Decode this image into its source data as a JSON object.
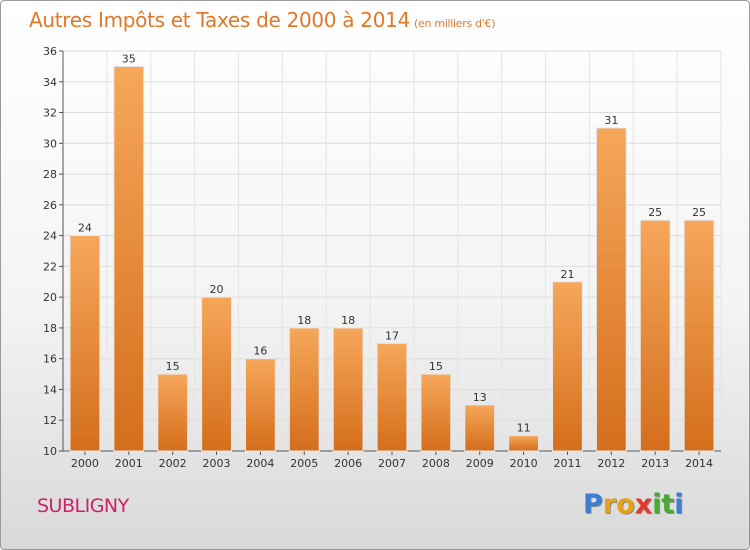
{
  "header": {
    "title": "Autres Impôts et Taxes de 2000 à 2014",
    "unit": "(en milliers d'€)"
  },
  "footer": {
    "place": "SUBLIGNY",
    "logo_letters": [
      "P",
      "r",
      "o",
      "x",
      "i",
      "t",
      "i"
    ],
    "logo_colors": [
      "#3a7fd5",
      "#e8a21a",
      "#e8a21a",
      "#e23b2e",
      "#4da83a",
      "#4da83a",
      "#3a7fd5"
    ]
  },
  "chart_data": {
    "type": "bar",
    "title": "Autres Impôts et Taxes de 2000 à 2014",
    "xlabel": "",
    "ylabel": "",
    "categories": [
      "2000",
      "2001",
      "2002",
      "2003",
      "2004",
      "2005",
      "2006",
      "2007",
      "2008",
      "2009",
      "2010",
      "2011",
      "2012",
      "2013",
      "2014"
    ],
    "values": [
      24,
      35,
      15,
      20,
      16,
      18,
      18,
      17,
      15,
      13,
      11,
      21,
      31,
      25,
      25
    ],
    "ylim": [
      10,
      36
    ],
    "yticks": [
      "10",
      "12",
      "14",
      "16",
      "18",
      "20",
      "22",
      "24",
      "26",
      "28",
      "30",
      "32",
      "34",
      "36"
    ],
    "grid": true,
    "legend": "none",
    "bar_color_top": "#f6a75a",
    "bar_color_bottom": "#d46e1c"
  }
}
